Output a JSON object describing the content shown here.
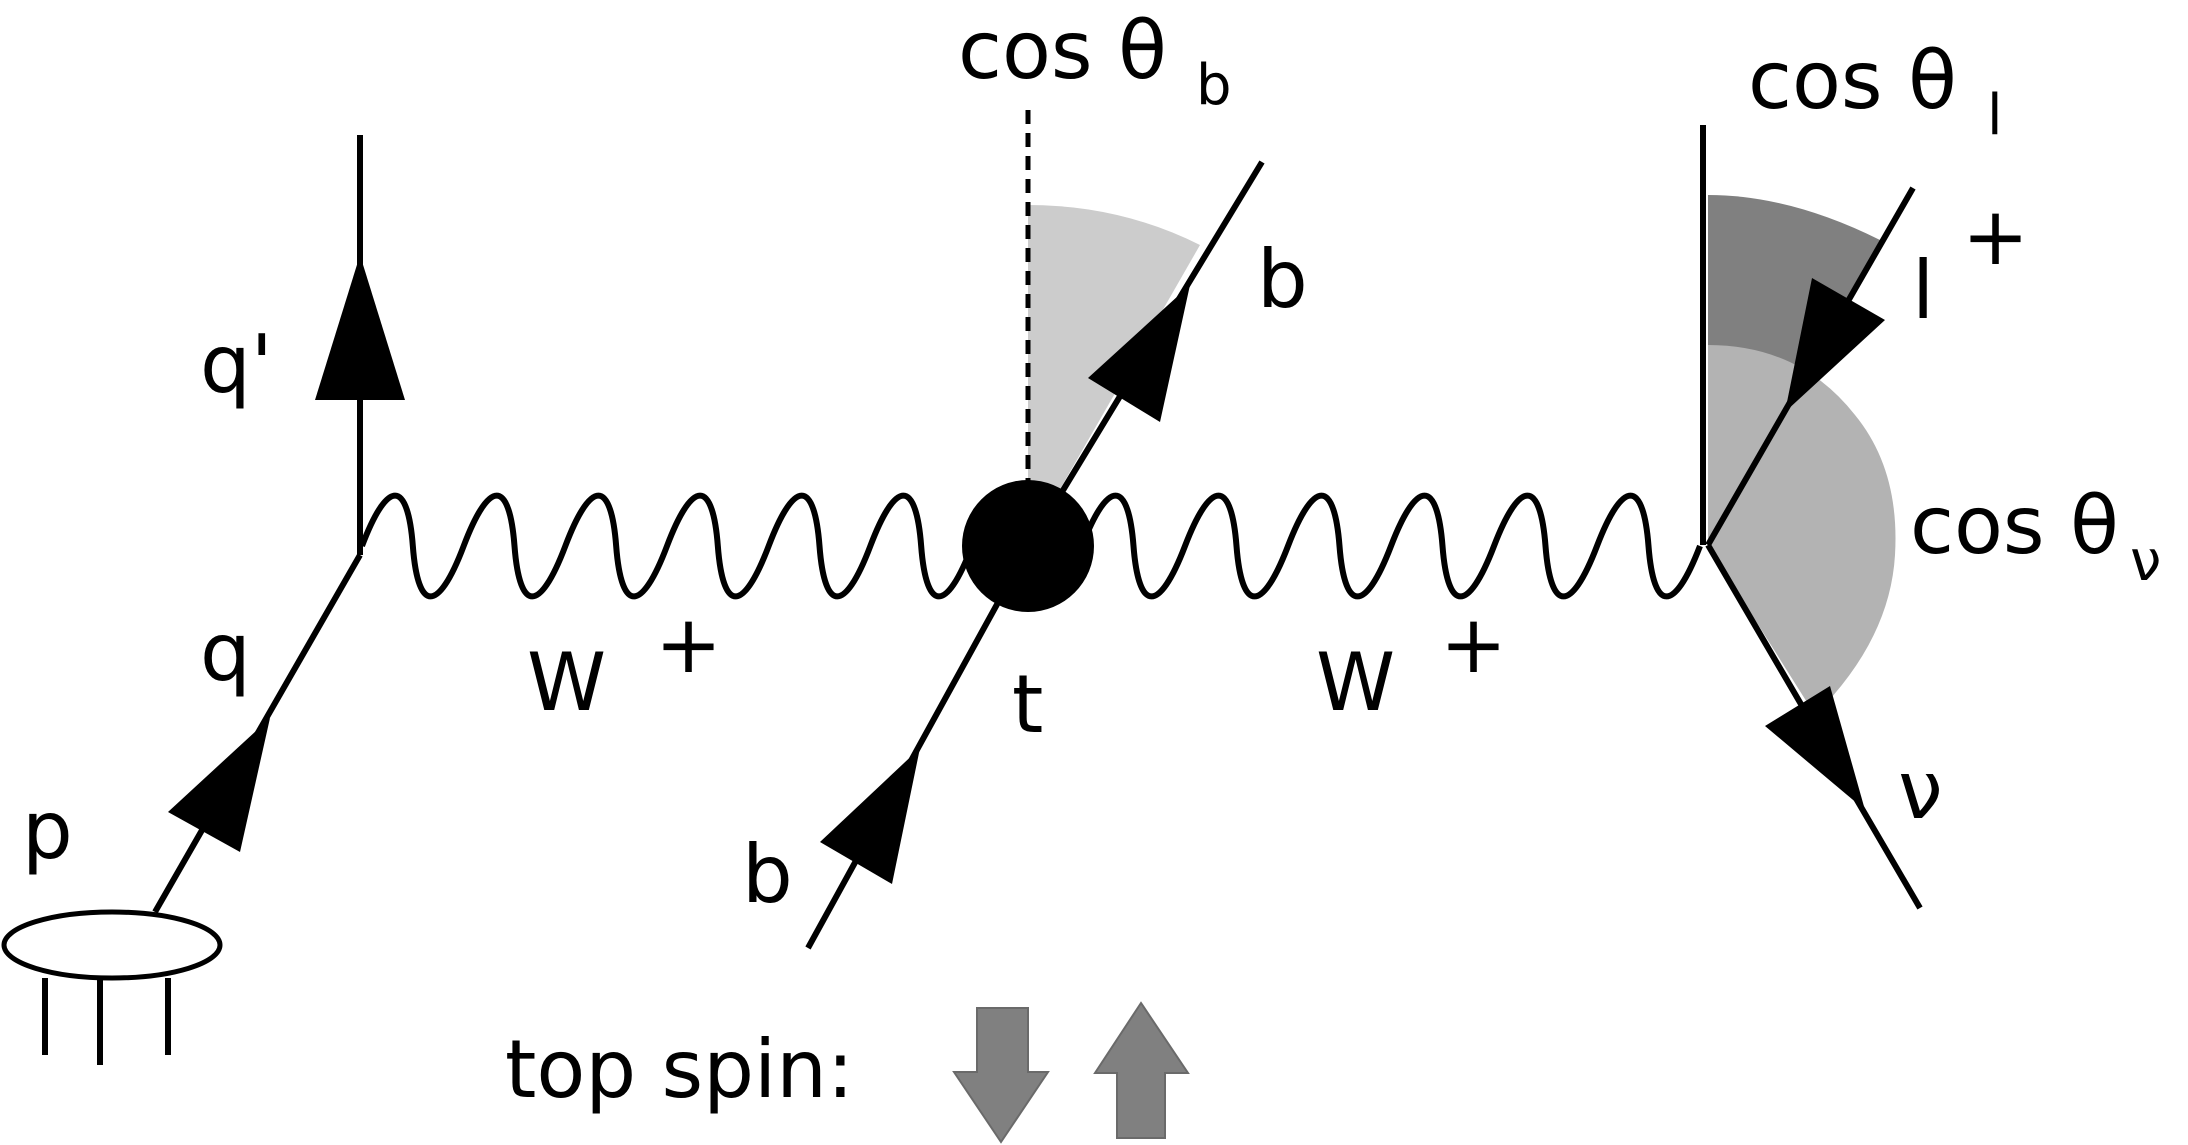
{
  "labels": {
    "q_prime": "q'",
    "q": "q",
    "p": "p",
    "w_left": "W",
    "w_left_charge": "+",
    "t": "t",
    "b_in": "b",
    "b_out": "b",
    "w_right": "W",
    "w_right_charge": "+",
    "l": "l",
    "l_charge": "+",
    "nu": "ν",
    "cos_b": "cos θ",
    "cos_b_sub": "b",
    "cos_l": "cos θ",
    "cos_l_sub": "l",
    "cos_nu": "cos θ",
    "cos_nu_sub": "ν",
    "top_spin": "top spin:"
  },
  "colors": {
    "line": "#000000",
    "angle_b": "#cccccc",
    "angle_l": "#808080",
    "angle_nu": "#b3b3b3",
    "spin_arrow": "#808080"
  },
  "icons": {
    "spin_down": "arrow-down-icon",
    "spin_up": "arrow-up-icon"
  }
}
